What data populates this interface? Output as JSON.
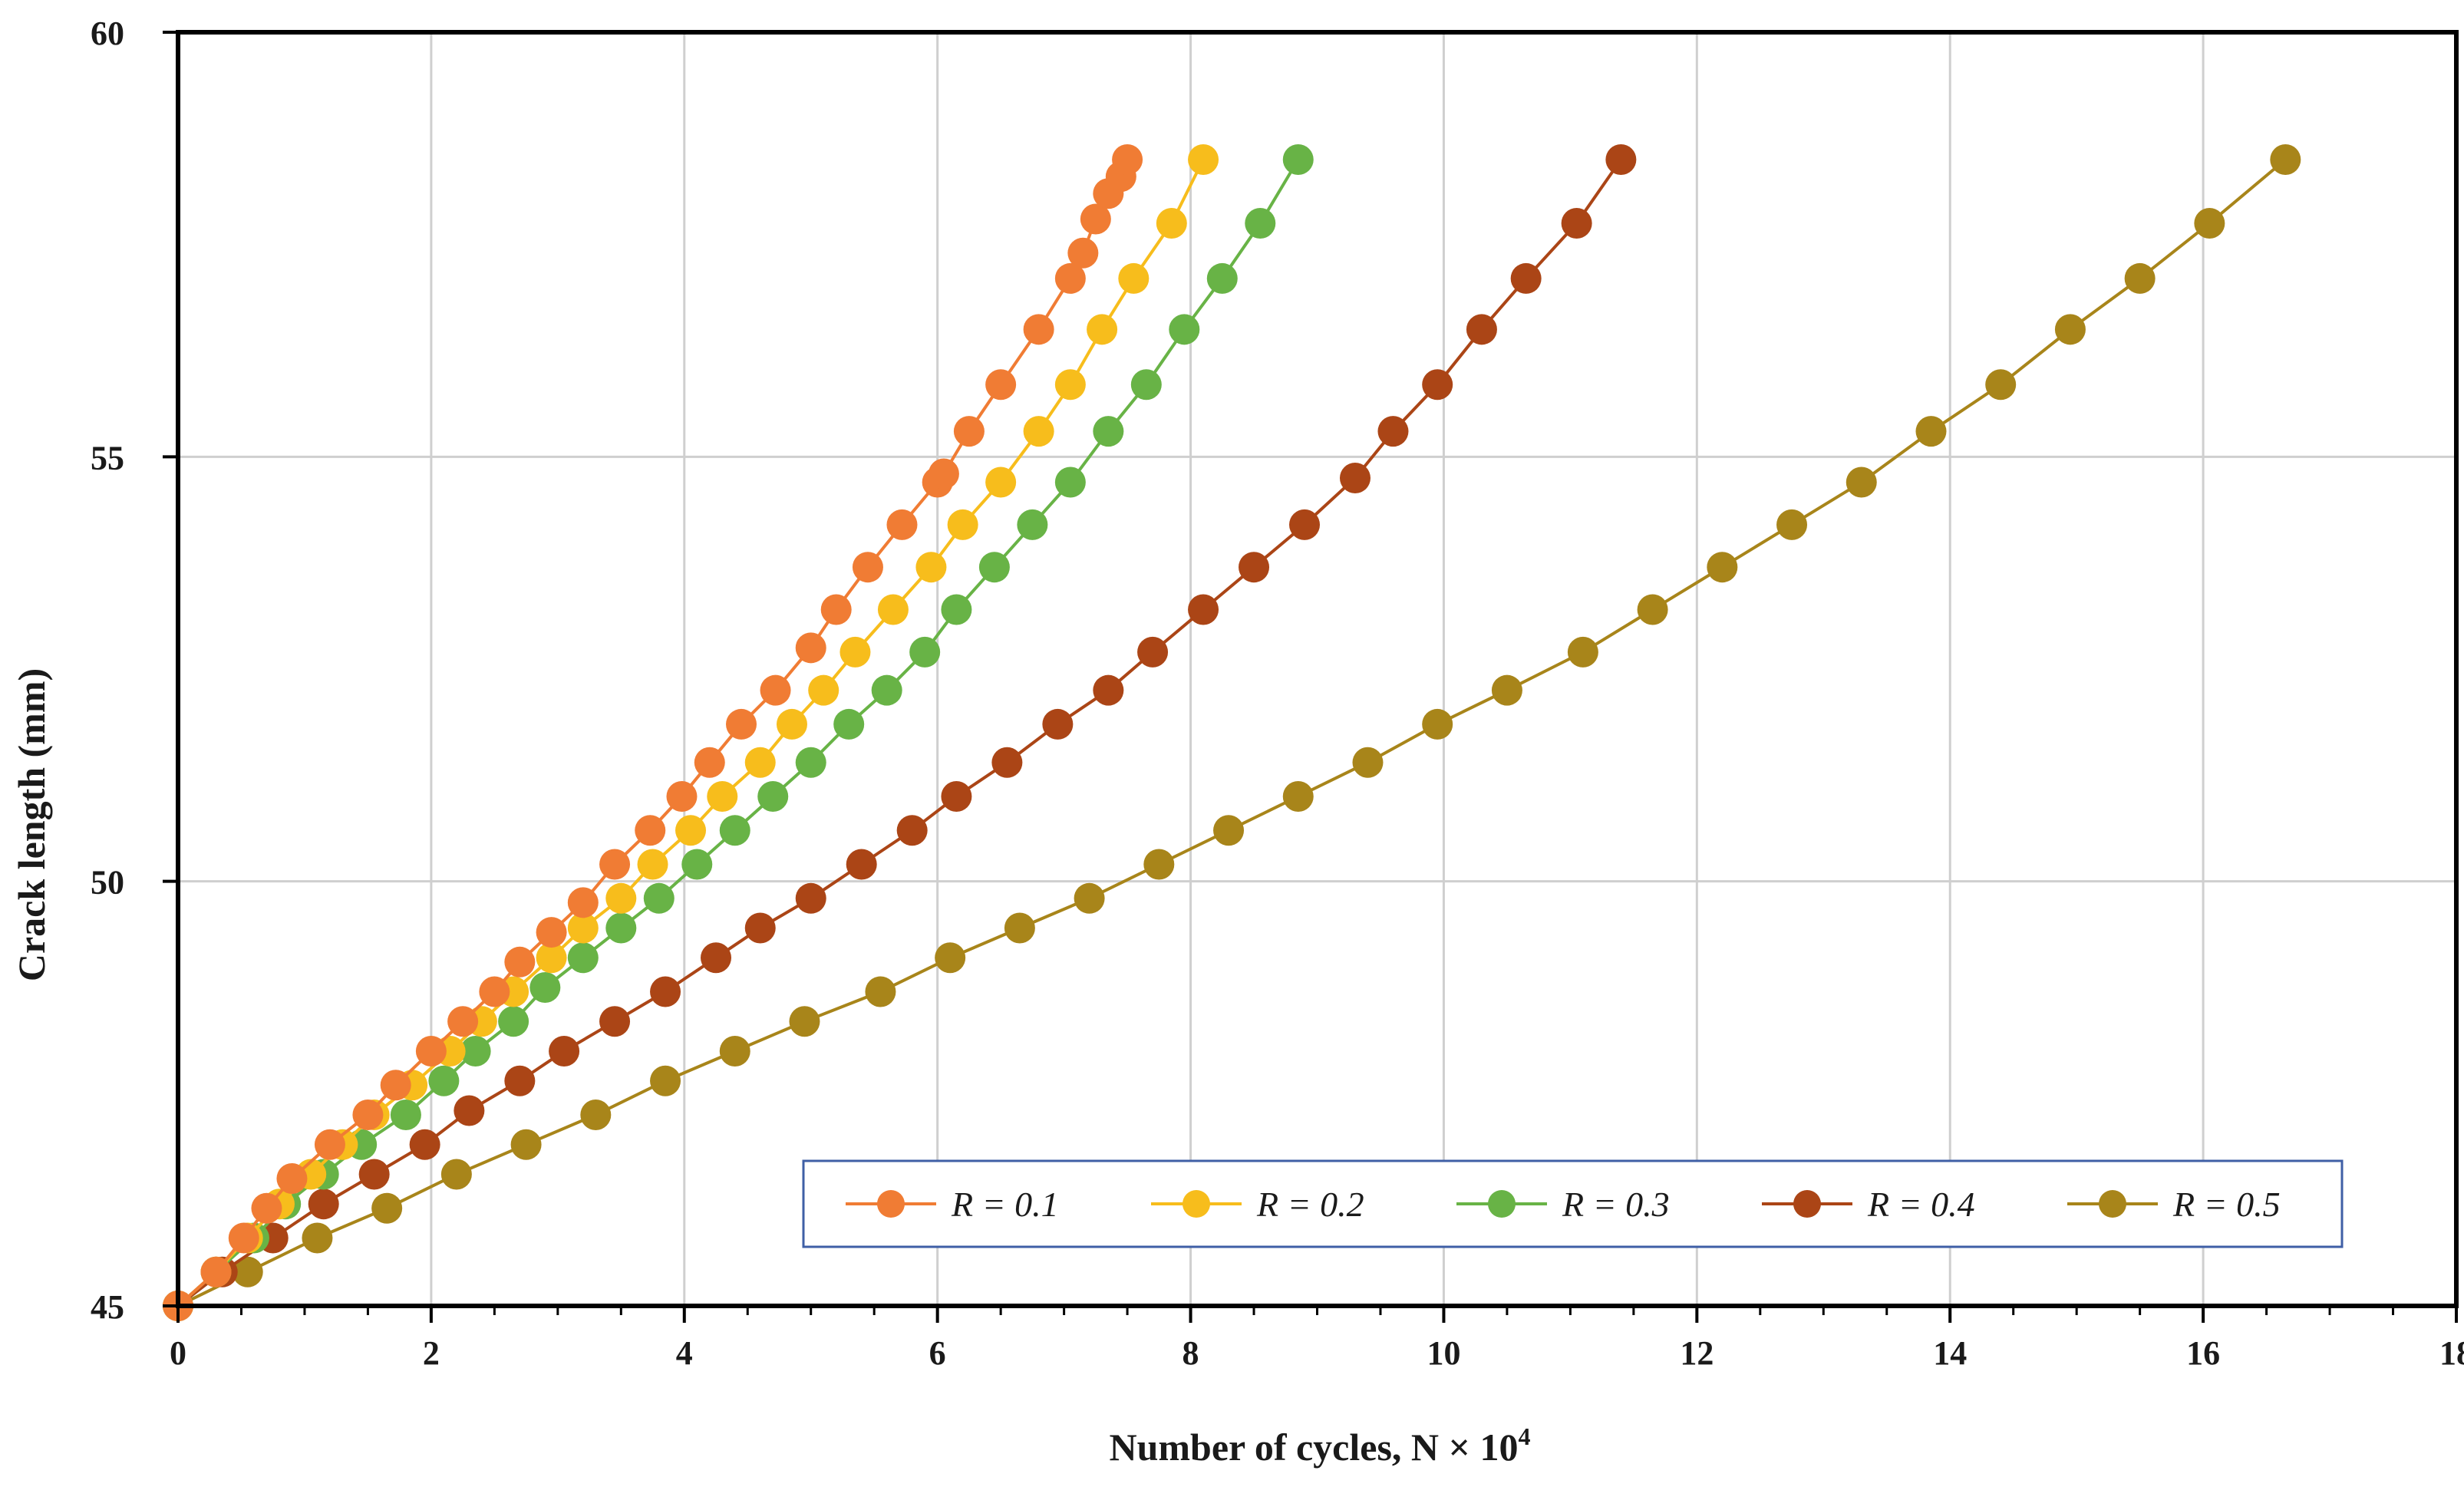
{
  "chart_data": {
    "type": "line",
    "title": "",
    "xlabel": "Number of cycles, N ×  10",
    "xlabel_superscript": "4",
    "ylabel": "Crack length (mm)",
    "xlim": [
      0,
      18
    ],
    "ylim": [
      45,
      60
    ],
    "xticks": [
      "0",
      "2",
      "4",
      "6",
      "8",
      "10",
      "12",
      "14",
      "16",
      "18"
    ],
    "yticks": [
      "45",
      "50",
      "55",
      "60"
    ],
    "grid": true,
    "legend_position": "bottom-right",
    "crack_length_mm": [
      45.0,
      45.4,
      45.8,
      46.2,
      46.6,
      47.0,
      47.4,
      47.8,
      48.2,
      48.6,
      49.0,
      49.4,
      49.8,
      50.2,
      50.6,
      51.0,
      51.4,
      51.8,
      52.2,
      52.6,
      53.0,
      53.4,
      53.8,
      54.2,
      54.6,
      55.0,
      55.4,
      55.8,
      56.2,
      56.6,
      57.0,
      57.4,
      57.8,
      58.2,
      58.5
    ],
    "series": [
      {
        "name": "R = 0.1",
        "color": "#f07c34",
        "x": [
          0,
          0.3,
          0.52,
          0.7,
          0.9,
          1.2,
          1.5,
          1.72,
          2.0,
          2.25,
          2.5,
          2.7,
          2.95,
          3.2,
          3.45,
          3.73,
          3.98,
          4.2,
          4.45,
          4.72,
          5.0,
          5.2,
          5.45,
          5.72,
          6.0,
          6.05,
          6.25,
          6.5,
          6.8,
          7.05,
          7.15,
          7.25,
          7.35,
          7.45,
          7.5
        ],
        "y": [
          45.0,
          45.4,
          45.8,
          46.15,
          46.5,
          46.9,
          47.25,
          47.6,
          48.0,
          48.35,
          48.7,
          49.05,
          49.4,
          49.75,
          50.2,
          50.6,
          51.0,
          51.4,
          51.85,
          52.25,
          52.75,
          53.2,
          53.7,
          54.2,
          54.7,
          54.8,
          55.3,
          55.85,
          56.5,
          57.1,
          57.4,
          57.8,
          58.1,
          58.3,
          58.5
        ]
      },
      {
        "name": "R = 0.2",
        "color": "#f7bd1c",
        "x": [
          0,
          0.3,
          0.55,
          0.8,
          1.05,
          1.3,
          1.55,
          1.85,
          2.15,
          2.4,
          2.65,
          2.95,
          3.2,
          3.5,
          3.75,
          4.05,
          4.3,
          4.6,
          4.85,
          5.1,
          5.35,
          5.65,
          5.95,
          6.2,
          6.5,
          6.8,
          7.05,
          7.3,
          7.55,
          7.85,
          8.1
        ],
        "y": [
          45.0,
          45.4,
          45.8,
          46.2,
          46.55,
          46.9,
          47.25,
          47.6,
          48.0,
          48.35,
          48.7,
          49.1,
          49.45,
          49.8,
          50.2,
          50.6,
          51.0,
          51.4,
          51.85,
          52.25,
          52.7,
          53.2,
          53.7,
          54.2,
          54.7,
          55.3,
          55.85,
          56.5,
          57.1,
          57.75,
          58.5
        ]
      },
      {
        "name": "R = 0.3",
        "color": "#68b346",
        "x": [
          0,
          0.3,
          0.6,
          0.85,
          1.15,
          1.45,
          1.8,
          2.1,
          2.35,
          2.65,
          2.9,
          3.2,
          3.5,
          3.8,
          4.1,
          4.4,
          4.7,
          5.0,
          5.3,
          5.6,
          5.9,
          6.15,
          6.45,
          6.75,
          7.05,
          7.35,
          7.65,
          7.95,
          8.25,
          8.55,
          8.85
        ],
        "y": [
          45.0,
          45.4,
          45.8,
          46.2,
          46.55,
          46.9,
          47.25,
          47.65,
          48.0,
          48.35,
          48.75,
          49.1,
          49.45,
          49.8,
          50.2,
          50.6,
          51.0,
          51.4,
          51.85,
          52.25,
          52.7,
          53.2,
          53.7,
          54.2,
          54.7,
          55.3,
          55.85,
          56.5,
          57.1,
          57.75,
          58.5
        ]
      },
      {
        "name": "R = 0.4",
        "color": "#ab4516",
        "x": [
          0,
          0.35,
          0.75,
          1.15,
          1.55,
          1.95,
          2.3,
          2.7,
          3.05,
          3.45,
          3.85,
          4.25,
          4.6,
          5.0,
          5.4,
          5.8,
          6.15,
          6.55,
          6.95,
          7.35,
          7.7,
          8.1,
          8.5,
          8.9,
          9.3,
          9.6,
          9.95,
          10.3,
          10.65,
          11.05,
          11.4
        ],
        "y": [
          45.0,
          45.4,
          45.8,
          46.2,
          46.55,
          46.9,
          47.3,
          47.65,
          48.0,
          48.35,
          48.7,
          49.1,
          49.45,
          49.8,
          50.2,
          50.6,
          51.0,
          51.4,
          51.85,
          52.25,
          52.7,
          53.2,
          53.7,
          54.2,
          54.75,
          55.3,
          55.85,
          56.5,
          57.1,
          57.75,
          58.5
        ]
      },
      {
        "name": "R = 0.5",
        "color": "#a8851a",
        "x": [
          0,
          0.55,
          1.1,
          1.65,
          2.2,
          2.75,
          3.3,
          3.85,
          4.4,
          4.95,
          5.55,
          6.1,
          6.65,
          7.2,
          7.75,
          8.3,
          8.85,
          9.4,
          9.95,
          10.5,
          11.1,
          11.65,
          12.2,
          12.75,
          13.3,
          13.85,
          14.4,
          14.95,
          15.5,
          16.05,
          16.65
        ],
        "y": [
          45.0,
          45.4,
          45.8,
          46.15,
          46.55,
          46.9,
          47.25,
          47.65,
          48.0,
          48.35,
          48.7,
          49.1,
          49.45,
          49.8,
          50.2,
          50.6,
          51.0,
          51.4,
          51.85,
          52.25,
          52.7,
          53.2,
          53.7,
          54.2,
          54.7,
          55.3,
          55.85,
          56.5,
          57.1,
          57.75,
          58.5
        ]
      }
    ],
    "frame_color": "#000000",
    "grid_color": "#cfcfcf",
    "legend_border_color": "#3f5fa6"
  }
}
